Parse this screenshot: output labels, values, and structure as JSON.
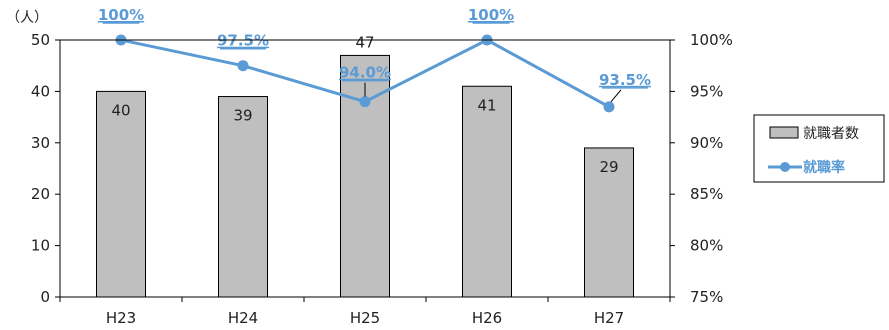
{
  "chart_data": {
    "type": "bar",
    "y_unit_label": "（人）",
    "categories": [
      "H23",
      "H24",
      "H25",
      "H26",
      "H27"
    ],
    "bar_series": {
      "name": "就職者数",
      "values": [
        40,
        39,
        47,
        41,
        29
      ],
      "value_labels": [
        "40",
        "39",
        "47",
        "41",
        "29"
      ],
      "color": "#bfbfbf"
    },
    "line_series": {
      "name": "就職率",
      "values": [
        100,
        97.5,
        94.0,
        100,
        93.5
      ],
      "value_labels": [
        "100%",
        "97.5%",
        "94.0%",
        "100%",
        "93.5%"
      ],
      "color": "#5b9bd5"
    },
    "y_left": {
      "min": 0,
      "max": 50,
      "ticks": [
        "0",
        "10",
        "20",
        "30",
        "40",
        "50"
      ]
    },
    "y_right": {
      "min": 75,
      "max": 100,
      "ticks": [
        "75%",
        "80%",
        "85%",
        "90%",
        "95%",
        "100%"
      ]
    },
    "legend_position": "right",
    "grid": false
  }
}
